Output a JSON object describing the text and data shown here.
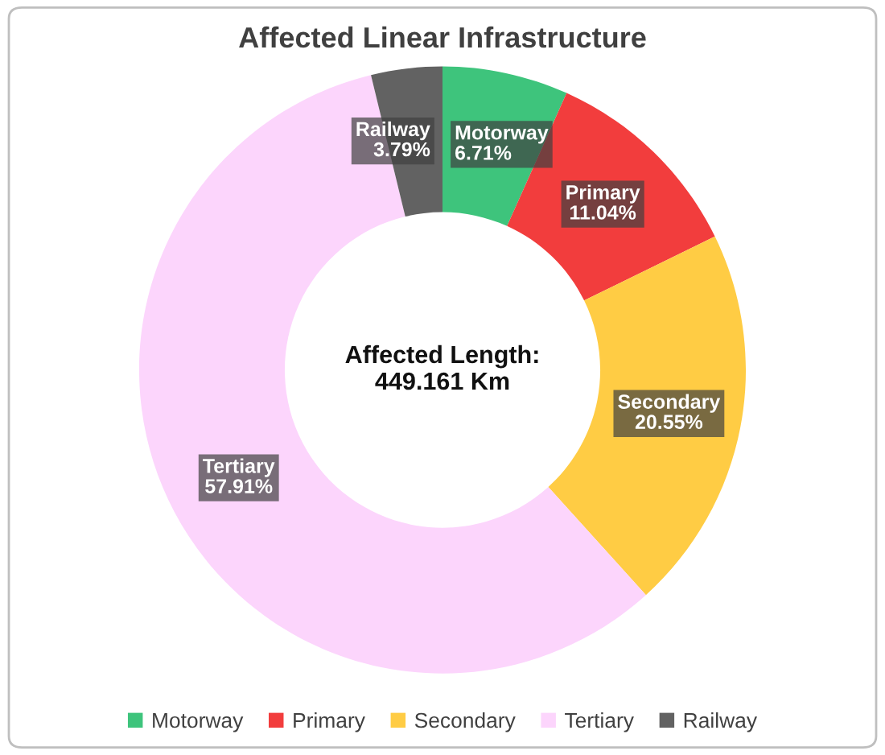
{
  "chart_data": {
    "type": "donut",
    "title": "Affected Linear Infrastructure",
    "categories": [
      "Motorway",
      "Primary",
      "Secondary",
      "Tertiary",
      "Railway"
    ],
    "values": [
      6.71,
      11.04,
      20.55,
      57.91,
      3.79
    ],
    "value_labels": [
      "6.71%",
      "11.04%",
      "20.55%",
      "57.91%",
      "3.79%"
    ],
    "colors": [
      "#3ec47c",
      "#f23d3d",
      "#ffcc44",
      "#fcd5fc",
      "#626262"
    ],
    "annotations": [
      "Affected Length:\n449.161 Km"
    ],
    "legend": "bottom"
  }
}
